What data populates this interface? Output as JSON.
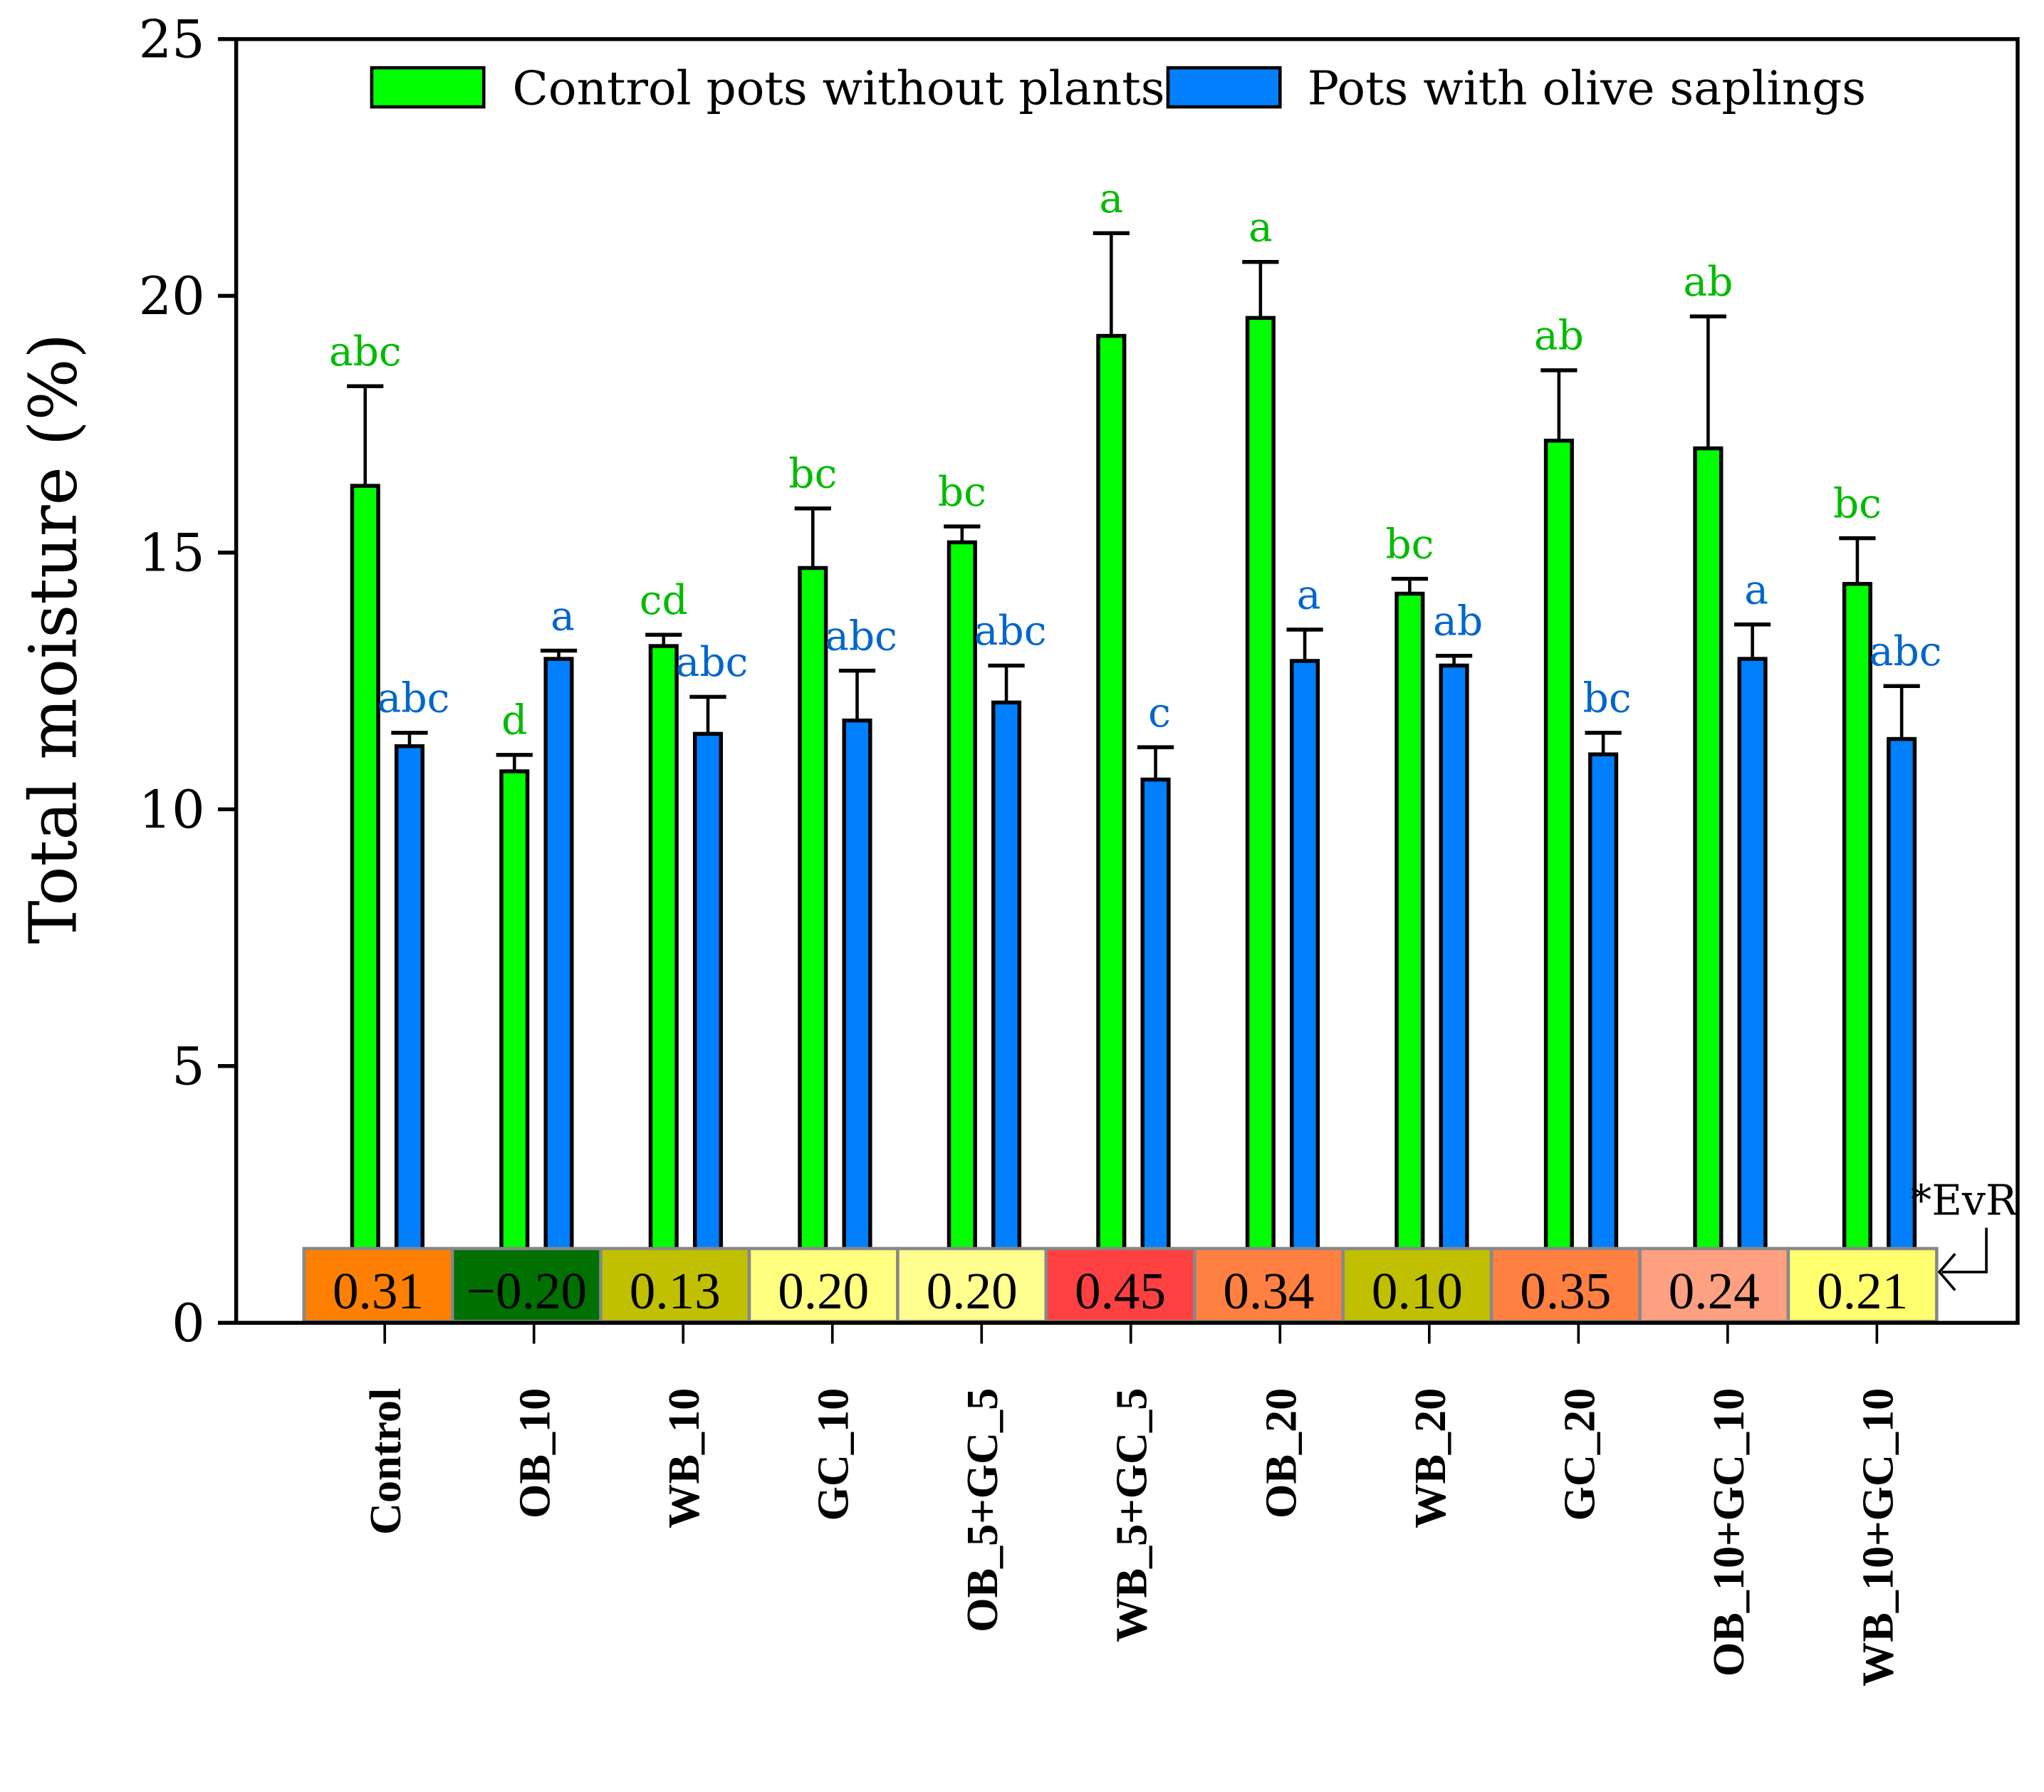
{
  "chart_data": {
    "type": "bar",
    "ylabel": "Total moisture (%)",
    "xlabel": "",
    "ylim": [
      0,
      25
    ],
    "yticks": [
      0,
      5,
      10,
      15,
      20,
      25
    ],
    "grid": false,
    "legend_position": "top",
    "categories": [
      "Control",
      "OB_10",
      "WB_10",
      "GC_10",
      "OB_5+GC_5",
      "WB_5+GC_5",
      "OB_20",
      "WB_20",
      "GC_20",
      "OB_10+GC_10",
      "WB_10+GC_10"
    ],
    "series": [
      {
        "name": "Control pots without plants",
        "color": "#00ff00",
        "label_color": "#00bb00",
        "values": [
          16.3,
          10.74,
          13.18,
          14.7,
          15.2,
          19.22,
          19.57,
          14.2,
          17.18,
          17.03,
          14.39
        ],
        "error": [
          1.94,
          0.32,
          0.22,
          1.16,
          0.31,
          2.0,
          1.09,
          0.29,
          1.37,
          2.57,
          0.89
        ],
        "letters": [
          "abc",
          "d",
          "cd",
          "bc",
          "bc",
          "a",
          "a",
          "bc",
          "ab",
          "ab",
          "bc"
        ]
      },
      {
        "name": "Pots with olive saplings",
        "color": "#0080ff",
        "label_color": "#0066cc",
        "values": [
          11.23,
          12.93,
          11.47,
          11.73,
          12.08,
          10.58,
          12.89,
          12.8,
          11.07,
          12.93,
          11.37
        ],
        "error": [
          0.26,
          0.16,
          0.72,
          0.97,
          0.72,
          0.63,
          0.61,
          0.19,
          0.42,
          0.67,
          1.03
        ],
        "letters": [
          "abc",
          "a",
          "abc",
          "abc",
          "abc",
          "c",
          "a",
          "ab",
          "bc",
          "a",
          "abc"
        ]
      }
    ],
    "evr": {
      "label": "*EvR",
      "values": [
        "0.31",
        "−0.20",
        "0.13",
        "0.20",
        "0.20",
        "0.45",
        "0.34",
        "0.10",
        "0.35",
        "0.24",
        "0.21"
      ],
      "colors": [
        "#ff8000",
        "#007000",
        "#c0c000",
        "#ffff80",
        "#ffff90",
        "#ff4040",
        "#ff8040",
        "#c0c000",
        "#ff8040",
        "#ffa080",
        "#ffff70"
      ]
    }
  }
}
